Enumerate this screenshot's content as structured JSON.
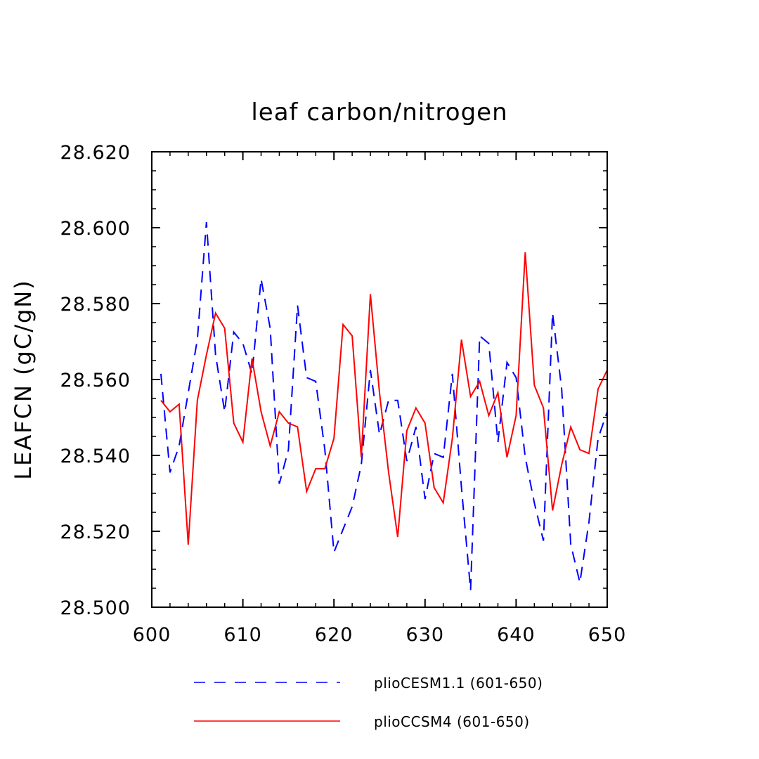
{
  "chart_data": {
    "type": "line",
    "title": "leaf carbon/nitrogen",
    "xlabel": "",
    "ylabel": "LEAFCN  (gC/gN)",
    "xlim": [
      600,
      650
    ],
    "ylim": [
      28.5,
      28.62
    ],
    "x_ticks": [
      600,
      610,
      620,
      630,
      640,
      650
    ],
    "x_tick_labels": [
      "600",
      "610",
      "620",
      "630",
      "640",
      "650"
    ],
    "y_ticks": [
      28.5,
      28.52,
      28.54,
      28.56,
      28.58,
      28.6,
      28.62
    ],
    "y_tick_labels": [
      "28.500",
      "28.520",
      "28.540",
      "28.560",
      "28.580",
      "28.600",
      "28.620"
    ],
    "x_minor_step": 2,
    "y_minor_step": 0.005,
    "grid": false,
    "legend_position": "bottom",
    "x": [
      601,
      602,
      603,
      604,
      605,
      606,
      607,
      608,
      609,
      610,
      611,
      612,
      613,
      614,
      615,
      616,
      617,
      618,
      619,
      620,
      621,
      622,
      623,
      624,
      625,
      626,
      627,
      628,
      629,
      630,
      631,
      632,
      633,
      634,
      635,
      636,
      637,
      638,
      639,
      640,
      641,
      642,
      643,
      644,
      645,
      646,
      647,
      648,
      649,
      650
    ],
    "series": [
      {
        "name": "plioCESM1.1 (601-650)",
        "color": "#0000ff",
        "style": "dashed",
        "values": [
          28.5615,
          28.5355,
          28.5425,
          28.5565,
          28.5705,
          28.6015,
          28.5665,
          28.5515,
          28.5725,
          28.5695,
          28.5615,
          28.5865,
          28.5735,
          28.5325,
          28.5415,
          28.5795,
          28.5605,
          28.5595,
          28.5415,
          28.5145,
          28.5205,
          28.5265,
          28.5375,
          28.5625,
          28.5455,
          28.5545,
          28.5545,
          28.5385,
          28.5475,
          28.5285,
          28.5405,
          28.5395,
          28.5615,
          28.5315,
          28.5045,
          28.5715,
          28.5695,
          28.5435,
          28.5645,
          28.5605,
          28.5395,
          28.5275,
          28.5175,
          28.5775,
          28.5575,
          28.5165,
          28.5065,
          28.5225,
          28.5445,
          28.5515
        ]
      },
      {
        "name": "plioCCSM4 (601-650)",
        "color": "#ff0000",
        "style": "solid",
        "values": [
          28.5545,
          28.5515,
          28.5535,
          28.5165,
          28.5545,
          28.5665,
          28.5775,
          28.5735,
          28.5485,
          28.5435,
          28.5655,
          28.5515,
          28.5425,
          28.5515,
          28.5485,
          28.5475,
          28.5305,
          28.5365,
          28.5365,
          28.5445,
          28.5745,
          28.5715,
          28.5395,
          28.5825,
          28.5565,
          28.5355,
          28.5185,
          28.5465,
          28.5525,
          28.5485,
          28.5315,
          28.5275,
          28.5445,
          28.5705,
          28.5555,
          28.5595,
          28.5505,
          28.5565,
          28.5395,
          28.5505,
          28.5935,
          28.5585,
          28.5525,
          28.5255,
          28.5375,
          28.5475,
          28.5415,
          28.5405,
          28.5575,
          28.5625
        ]
      }
    ]
  }
}
